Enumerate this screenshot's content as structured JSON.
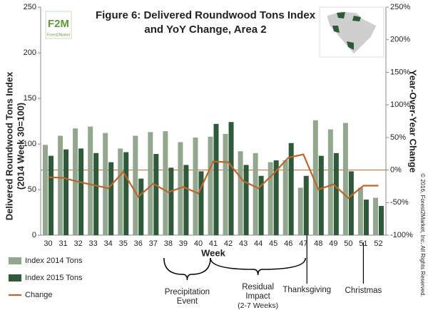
{
  "chart_data": {
    "type": "bar-line",
    "title": [
      "Figure 6: Delivered Roundwood Tons Index",
      "and YoY Change, Area 2"
    ],
    "y_label": [
      "Delivered Roundwood Tons Index",
      "(2014 Week 30=100)"
    ],
    "y2_label": "Year-Over-Year Change",
    "x_label": "Week",
    "logo": {
      "mark": "F2M",
      "name": "Forest2Market"
    },
    "copyright": "© 2016, Forest2Market, Inc. All Rights Reserved.",
    "categories": [
      "30",
      "31",
      "32",
      "33",
      "34",
      "35",
      "36",
      "37",
      "38",
      "39",
      "40",
      "41",
      "42",
      "43",
      "44",
      "45",
      "46",
      "47",
      "48",
      "49",
      "50",
      "51",
      "52"
    ],
    "series": [
      {
        "name": "Index 2014 Tons",
        "color": "#93a78f",
        "type": "bar",
        "values": [
          99,
          109,
          117,
          119,
          112,
          95,
          109,
          113,
          114,
          102,
          107,
          108,
          111,
          92,
          90,
          80,
          82,
          52,
          126,
          116,
          123,
          52,
          41
        ]
      },
      {
        "name": "Index 2015 Tons",
        "color": "#2e5a3a",
        "type": "bar",
        "values": [
          87,
          94,
          95,
          90,
          80,
          91,
          62,
          89,
          74,
          77,
          70,
          122,
          124,
          77,
          65,
          82,
          101,
          65,
          87,
          90,
          70,
          39,
          32
        ]
      },
      {
        "name": "Change",
        "color": "#c0652a",
        "type": "line",
        "axis": "y2",
        "values": [
          -11,
          -12,
          -18,
          -23,
          -28,
          -3,
          -41,
          -21,
          -34,
          -26,
          -36,
          13,
          12,
          -17,
          -28,
          -6,
          19,
          24,
          -30,
          -22,
          -43,
          -24,
          -24
        ]
      }
    ],
    "ylim": [
      0,
      250
    ],
    "yticks": [
      0,
      50,
      100,
      150,
      200,
      250
    ],
    "y2lim": [
      -100,
      250
    ],
    "y2ticks": [
      {
        "value": -100,
        "label": "-100%"
      },
      {
        "value": -50,
        "label": "-50%"
      },
      {
        "value": 0,
        "label": "0%"
      },
      {
        "value": 50,
        "label": "50%"
      },
      {
        "value": 100,
        "label": "100%"
      },
      {
        "value": 150,
        "label": "150%"
      },
      {
        "value": 200,
        "label": "200%"
      },
      {
        "value": 250,
        "label": "250%"
      }
    ],
    "reference_line_color": "#c0652a",
    "annotations": [
      {
        "lines": [
          "Precipitation",
          "Event"
        ]
      },
      {
        "lines": [
          "Residual",
          "Impact",
          "(2-7 Weeks)"
        ]
      },
      {
        "lines": [
          "Thanksgiving"
        ]
      },
      {
        "lines": [
          "Christmas"
        ]
      }
    ]
  }
}
